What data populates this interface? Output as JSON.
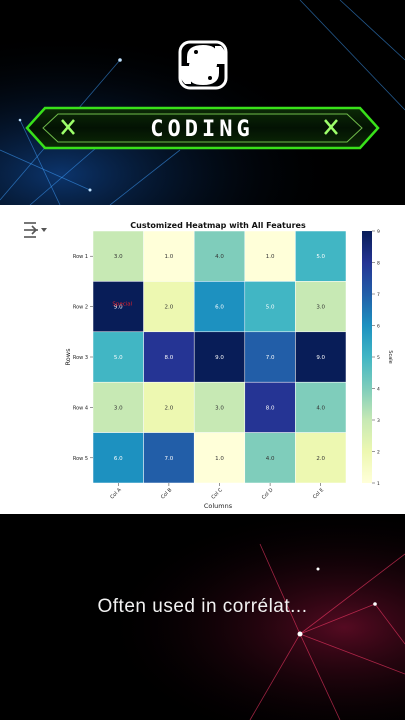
{
  "banner": {
    "logo_icon": "python-logo-icon",
    "title": "CODING",
    "left_icon": "x-icon",
    "right_icon": "x-icon",
    "accent_color": "#39e11a"
  },
  "toolbar": {
    "menu_icon": "menu-collapse-icon"
  },
  "caption": {
    "text": "Often used in corrélat..."
  },
  "chart_data": {
    "type": "heatmap",
    "title": "Customized Heatmap with All Features",
    "xlabel": "Columns",
    "ylabel": "Rows",
    "columns": [
      "Col A",
      "Col B",
      "Col C",
      "Col D",
      "Col E"
    ],
    "rows": [
      "Row 1",
      "Row 2",
      "Row 3",
      "Row 4",
      "Row 5"
    ],
    "values": [
      [
        3.0,
        1.0,
        4.0,
        1.0,
        5.0
      ],
      [
        9.0,
        2.0,
        6.0,
        5.0,
        3.0
      ],
      [
        5.0,
        8.0,
        9.0,
        7.0,
        9.0
      ],
      [
        3.0,
        2.0,
        3.0,
        8.0,
        4.0
      ],
      [
        6.0,
        7.0,
        1.0,
        4.0,
        2.0
      ]
    ],
    "cell_labels": [
      [
        "3.0",
        "1.0",
        "4.0",
        "1.0",
        "5.0"
      ],
      [
        "9.0",
        "2.0",
        "6.0",
        "5.0",
        "3.0"
      ],
      [
        "5.0",
        "8.0",
        "9.0",
        "7.0",
        "9.0"
      ],
      [
        "3.0",
        "2.0",
        "3.0",
        "8.0",
        "4.0"
      ],
      [
        "6.0",
        "7.0",
        "1.0",
        "4.0",
        "2.0"
      ]
    ],
    "annotation": {
      "text": "Special",
      "row": 1,
      "col": 0,
      "color": "#e0202a"
    },
    "colormap": "YlGnBu",
    "colorbar": {
      "label": "Scale",
      "min": 1,
      "max": 9,
      "ticks": [
        "1",
        "2",
        "3",
        "4",
        "5",
        "6",
        "7",
        "8",
        "9"
      ]
    },
    "grid": true
  }
}
